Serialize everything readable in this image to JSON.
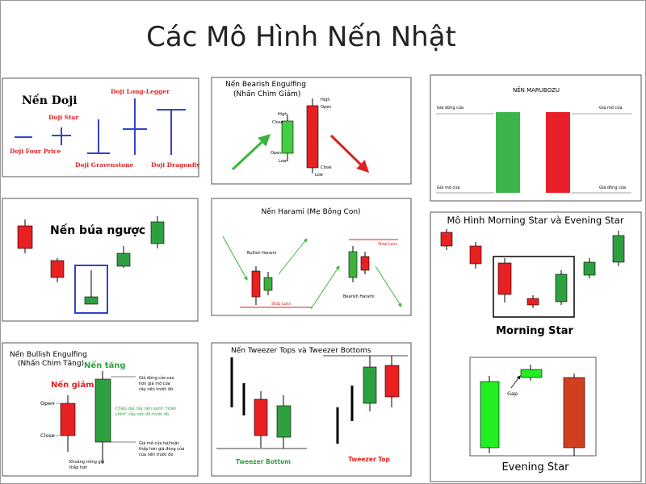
{
  "title": "Các Mô Hình Nến Nhật",
  "doji": {
    "heading": "Nến Doji",
    "labels": [
      "Doji Four Price",
      "Doji Star",
      "Doji Gravenstone",
      "Doji Long-Legger",
      "Doji Dragonfly"
    ]
  },
  "bearish": {
    "title": "Nến Bearish Engulfing",
    "subtitle": "(Nhấn Chìm Giảm)",
    "left_labels": [
      "High",
      "Close",
      "Open",
      "Low"
    ],
    "right_labels": [
      "High",
      "Open",
      "Close",
      "Low"
    ]
  },
  "marubozu": {
    "title": "NẾN MARUBOZU",
    "top_left": "Giá đóng cửa",
    "top_right": "Giá mở cửa",
    "bottom_left": "Giá mở cửa",
    "bottom_right": "Giá đóng cửa"
  },
  "hammer": {
    "title": "Nến búa ngược"
  },
  "harami": {
    "title": "Nến Harami (Mẹ Bồng Con)",
    "bullish": "Bullish Harami",
    "stop_loss_1": "Stop Loss",
    "stop_loss_2": "Stop Loss",
    "bearish": "Bearish Harami"
  },
  "star": {
    "title": "Mô Hình Morning Star và Evening Star",
    "morning": "Morning Star",
    "gap": "Gap",
    "evening": "Evening Star"
  },
  "bullish": {
    "title": "Nến Bullish Engulfing",
    "subtitle": "(Nhấn Chìm Tăng)",
    "up": "Nến tăng",
    "down": "Nến giảm",
    "open": "Open",
    "close": "Close",
    "note_top": [
      "Giá đóng cửa cao",
      "hơn giá mở cửa",
      "cây nến trước đó"
    ],
    "note_mid": [
      "Chiều dài cây nến xanh \"nhấn",
      "chìm\" cây nến đỏ trước đó"
    ],
    "note_bottom": [
      "Giá mở cửa tại/hoặc",
      "thấp hơn giá đóng cửa",
      "của nến trước đó"
    ],
    "note_gap": [
      "Khoảng trống giá",
      "thấp hơn"
    ]
  },
  "tweezer": {
    "title": "Nến Tweezer Tops và Tweezer Bottoms",
    "bottom": "Tweezer Bottom",
    "top": "Tweezer Top"
  }
}
